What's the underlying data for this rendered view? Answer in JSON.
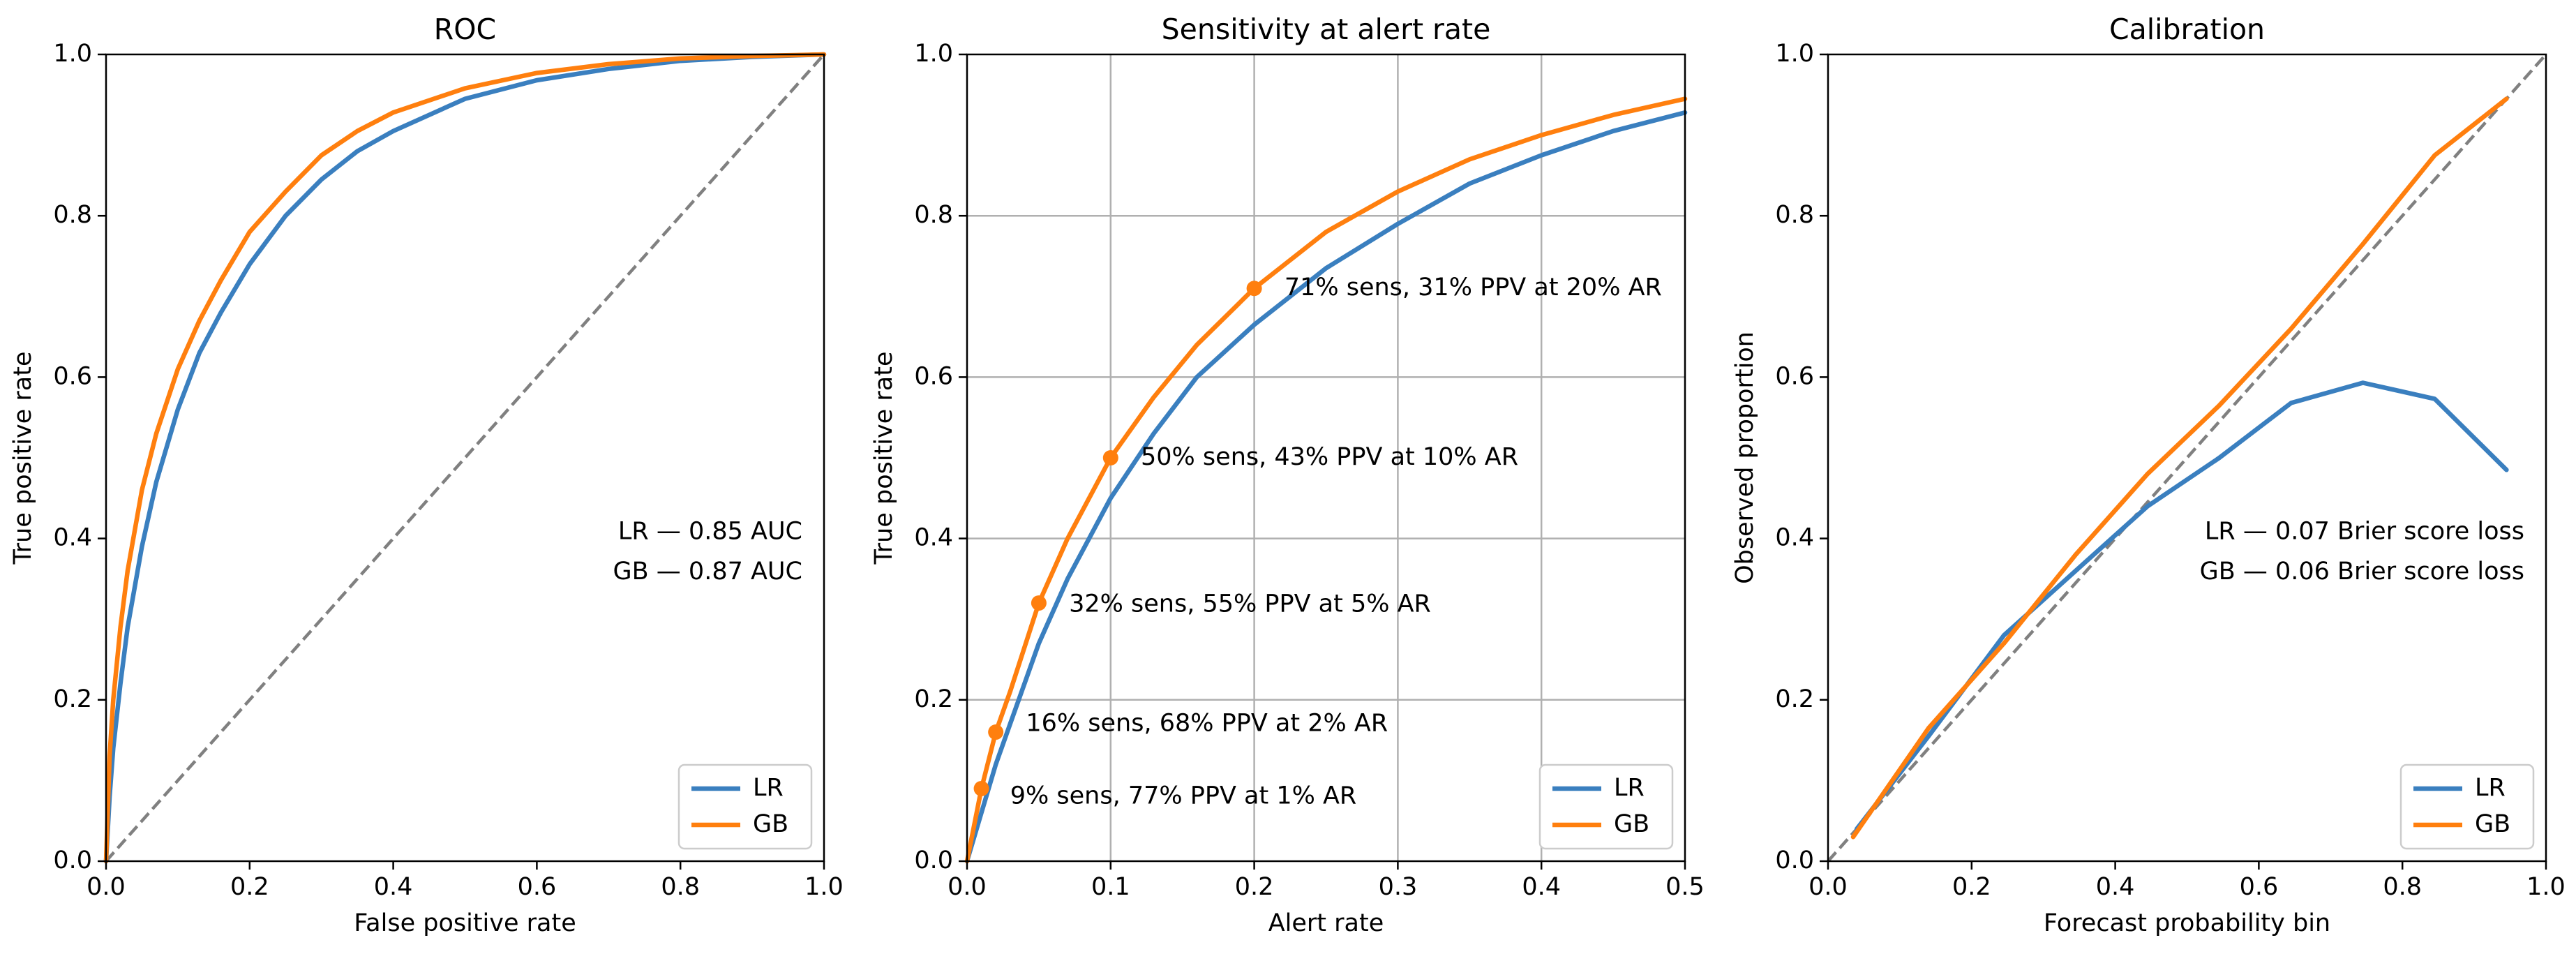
{
  "colors": {
    "lr": "#3a7fbf",
    "gb": "#ff7f0e",
    "diagonal": "#808080",
    "grid": "#b0b0b0"
  },
  "chart_data": [
    {
      "id": "roc",
      "type": "line",
      "title": "ROC",
      "xlabel": "False positive rate",
      "ylabel": "True positive rate",
      "xlim": [
        0,
        1
      ],
      "ylim": [
        0,
        1
      ],
      "xticks": [
        0,
        0.2,
        0.4,
        0.6,
        0.8,
        1.0
      ],
      "xtick_labels": [
        "0.0",
        "0.2",
        "0.4",
        "0.6",
        "0.8",
        "1.0"
      ],
      "yticks": [
        0,
        0.2,
        0.4,
        0.6,
        0.8,
        1.0
      ],
      "ytick_labels": [
        "0.0",
        "0.2",
        "0.4",
        "0.6",
        "0.8",
        "1.0"
      ],
      "grid": false,
      "legend": "lower-right",
      "reference_line": {
        "x": [
          0,
          1
        ],
        "y": [
          0,
          1
        ],
        "style": "dashed"
      },
      "series": [
        {
          "name": "LR",
          "color_key": "lr",
          "x": [
            0,
            0.005,
            0.01,
            0.02,
            0.03,
            0.05,
            0.07,
            0.1,
            0.13,
            0.16,
            0.2,
            0.25,
            0.3,
            0.35,
            0.4,
            0.5,
            0.6,
            0.7,
            0.8,
            0.9,
            1.0
          ],
          "y": [
            0,
            0.08,
            0.14,
            0.22,
            0.29,
            0.39,
            0.47,
            0.56,
            0.63,
            0.68,
            0.74,
            0.8,
            0.845,
            0.88,
            0.905,
            0.945,
            0.968,
            0.982,
            0.992,
            0.997,
            1.0
          ]
        },
        {
          "name": "GB",
          "color_key": "gb",
          "x": [
            0,
            0.005,
            0.01,
            0.02,
            0.03,
            0.05,
            0.07,
            0.1,
            0.13,
            0.16,
            0.2,
            0.25,
            0.3,
            0.35,
            0.4,
            0.5,
            0.6,
            0.7,
            0.8,
            0.9,
            1.0
          ],
          "y": [
            0,
            0.13,
            0.2,
            0.29,
            0.36,
            0.46,
            0.53,
            0.61,
            0.67,
            0.72,
            0.78,
            0.83,
            0.875,
            0.905,
            0.928,
            0.958,
            0.977,
            0.988,
            0.995,
            0.998,
            1.0
          ]
        }
      ],
      "annotations": [
        "LR — 0.85 AUC",
        "GB — 0.87 AUC"
      ]
    },
    {
      "id": "sens",
      "type": "line",
      "title": "Sensitivity at alert rate",
      "xlabel": "Alert rate",
      "ylabel": "True positive rate",
      "xlim": [
        0,
        0.5
      ],
      "ylim": [
        0,
        1
      ],
      "xticks": [
        0,
        0.1,
        0.2,
        0.3,
        0.4,
        0.5
      ],
      "xtick_labels": [
        "0.0",
        "0.1",
        "0.2",
        "0.3",
        "0.4",
        "0.5"
      ],
      "yticks": [
        0,
        0.2,
        0.4,
        0.6,
        0.8,
        1.0
      ],
      "ytick_labels": [
        "0.0",
        "0.2",
        "0.4",
        "0.6",
        "0.8",
        "1.0"
      ],
      "grid": true,
      "legend": "lower-right",
      "series": [
        {
          "name": "LR",
          "color_key": "lr",
          "x": [
            0,
            0.01,
            0.02,
            0.03,
            0.05,
            0.07,
            0.1,
            0.13,
            0.16,
            0.2,
            0.25,
            0.3,
            0.35,
            0.4,
            0.45,
            0.5
          ],
          "y": [
            0,
            0.06,
            0.12,
            0.17,
            0.27,
            0.35,
            0.45,
            0.53,
            0.6,
            0.665,
            0.735,
            0.79,
            0.84,
            0.875,
            0.905,
            0.928
          ]
        },
        {
          "name": "GB",
          "color_key": "gb",
          "x": [
            0,
            0.01,
            0.02,
            0.03,
            0.05,
            0.07,
            0.1,
            0.13,
            0.16,
            0.2,
            0.25,
            0.3,
            0.35,
            0.4,
            0.45,
            0.5
          ],
          "y": [
            0,
            0.09,
            0.16,
            0.21,
            0.32,
            0.4,
            0.5,
            0.575,
            0.64,
            0.71,
            0.78,
            0.83,
            0.87,
            0.9,
            0.925,
            0.945
          ]
        }
      ],
      "markers": [
        {
          "x": 0.01,
          "y": 0.09,
          "label": "9% sens, 77% PPV at 1% AR",
          "label_x": 0.03,
          "label_y": 0.08
        },
        {
          "x": 0.02,
          "y": 0.16,
          "label": "16% sens, 68% PPV at 2% AR",
          "label_x": 0.041,
          "label_y": 0.17
        },
        {
          "x": 0.05,
          "y": 0.32,
          "label": "32% sens, 55% PPV at 5% AR",
          "label_x": 0.071,
          "label_y": 0.318
        },
        {
          "x": 0.1,
          "y": 0.5,
          "label": "50% sens, 43% PPV at 10% AR",
          "label_x": 0.121,
          "label_y": 0.5
        },
        {
          "x": 0.2,
          "y": 0.71,
          "label": "71% sens, 31% PPV at 20% AR",
          "label_x": 0.221,
          "label_y": 0.71
        }
      ]
    },
    {
      "id": "calib",
      "type": "line",
      "title": "Calibration",
      "xlabel": "Forecast probability bin",
      "ylabel": "Observed proportion",
      "xlim": [
        0,
        1
      ],
      "ylim": [
        0,
        1
      ],
      "xticks": [
        0,
        0.2,
        0.4,
        0.6,
        0.8,
        1.0
      ],
      "xtick_labels": [
        "0.0",
        "0.2",
        "0.4",
        "0.6",
        "0.8",
        "1.0"
      ],
      "yticks": [
        0,
        0.2,
        0.4,
        0.6,
        0.8,
        1.0
      ],
      "ytick_labels": [
        "0.0",
        "0.2",
        "0.4",
        "0.6",
        "0.8",
        "1.0"
      ],
      "grid": false,
      "legend": "lower-right",
      "reference_line": {
        "x": [
          0,
          1
        ],
        "y": [
          0,
          1
        ],
        "style": "dashed"
      },
      "series": [
        {
          "name": "LR",
          "color_key": "lr",
          "x": [
            0.04,
            0.14,
            0.245,
            0.345,
            0.445,
            0.545,
            0.645,
            0.745,
            0.845,
            0.945
          ],
          "y": [
            0.04,
            0.155,
            0.28,
            0.36,
            0.44,
            0.5,
            0.568,
            0.593,
            0.573,
            0.485
          ]
        },
        {
          "name": "GB",
          "color_key": "gb",
          "x": [
            0.035,
            0.14,
            0.245,
            0.345,
            0.445,
            0.545,
            0.645,
            0.745,
            0.845,
            0.945
          ],
          "y": [
            0.03,
            0.165,
            0.27,
            0.38,
            0.48,
            0.565,
            0.66,
            0.765,
            0.875,
            0.945
          ]
        }
      ],
      "annotations": [
        "LR — 0.07 Brier score loss",
        "GB — 0.06 Brier score loss"
      ]
    }
  ]
}
